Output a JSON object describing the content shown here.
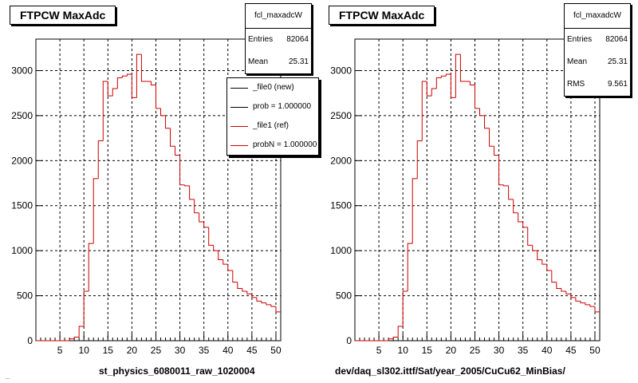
{
  "colors": {
    "hist_line": "#cc0000",
    "grid": "#000000",
    "frame": "#000000",
    "background": "#ffffff"
  },
  "chart_data": [
    {
      "type": "bar",
      "style": "step-histogram",
      "title": "FTPCW MaxAdc",
      "xlabel": "st_physics_6080011_raw_1020004",
      "ylabel": "",
      "xlim": [
        0,
        51
      ],
      "ylim": [
        0,
        3350
      ],
      "grid": true,
      "xticks": [
        "5",
        "10",
        "15",
        "20",
        "25",
        "30",
        "35",
        "40",
        "45",
        "50"
      ],
      "yticks": [
        "0",
        "500",
        "1000",
        "1500",
        "2000",
        "2500",
        "3000"
      ],
      "bin_edges_start": 0,
      "bin_width": 1,
      "values": [
        0,
        0,
        0,
        0,
        0,
        0,
        0,
        20,
        40,
        160,
        550,
        1080,
        1800,
        2220,
        2880,
        2720,
        2800,
        2920,
        2940,
        2960,
        2700,
        3180,
        2880,
        2880,
        2840,
        2580,
        2500,
        2360,
        2160,
        2060,
        1730,
        1720,
        1570,
        1420,
        1320,
        1260,
        1060,
        1000,
        900,
        850,
        780,
        650,
        580,
        550,
        520,
        480,
        440,
        420,
        400,
        380,
        320
      ],
      "stats": {
        "name": "fcl_maxadcW",
        "entries_label": "Entries",
        "entries": "82064",
        "mean_label": "Mean",
        "mean": "25.31"
      },
      "legend": [
        {
          "label": "_file0 (new)",
          "color": "#000000"
        },
        {
          "label": "prob = 1.000000",
          "color": "#000000"
        },
        {
          "label": "_file1 (ref)",
          "color": "#cc0000"
        },
        {
          "label": "probN = 1.000000",
          "color": "#cc0000"
        }
      ],
      "legend_placement": "top-right"
    },
    {
      "type": "bar",
      "style": "step-histogram",
      "title": "FTPCW MaxAdc",
      "xlabel": "dev/daq_sl302.ittf/Sat/year_2005/CuCu62_MinBias/",
      "ylabel": "",
      "xlim": [
        0,
        51
      ],
      "ylim": [
        0,
        3350
      ],
      "grid": true,
      "xticks": [
        "5",
        "10",
        "15",
        "20",
        "25",
        "30",
        "35",
        "40",
        "45",
        "50"
      ],
      "yticks": [
        "0",
        "500",
        "1000",
        "1500",
        "2000",
        "2500",
        "3000"
      ],
      "bin_edges_start": 0,
      "bin_width": 1,
      "values": [
        0,
        0,
        0,
        0,
        0,
        0,
        0,
        20,
        40,
        160,
        550,
        1080,
        1800,
        2220,
        2880,
        2720,
        2800,
        2920,
        2940,
        2960,
        2700,
        3180,
        2880,
        2880,
        2840,
        2580,
        2500,
        2360,
        2160,
        2060,
        1730,
        1720,
        1570,
        1420,
        1320,
        1260,
        1060,
        1000,
        900,
        850,
        780,
        650,
        580,
        550,
        520,
        480,
        440,
        420,
        400,
        380,
        320
      ],
      "stats": {
        "name": "fcl_maxadcW",
        "entries_label": "Entries",
        "entries": "82064",
        "mean_label": "Mean",
        "mean": "25.31",
        "rms_label": "RMS",
        "rms": "9.561"
      }
    }
  ],
  "footer": {
    "text": "..."
  }
}
